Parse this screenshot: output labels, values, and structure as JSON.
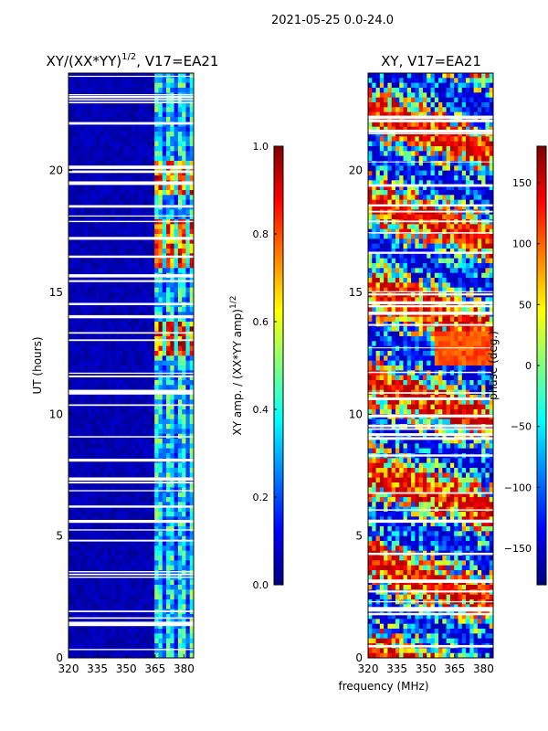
{
  "page_title": "2021-05-25 0.0-24.0",
  "colormap_stops": [
    "#00007f",
    "#0000ff",
    "#007fff",
    "#00ffff",
    "#7fff7f",
    "#ffff00",
    "#ff7f00",
    "#ff0000",
    "#7f0000"
  ],
  "chart_data": [
    {
      "type": "heatmap",
      "title_main": "XY/(XX*YY)",
      "title_exp": "1/2",
      "title_tail": ", V17=EA21",
      "x_range": [
        320,
        385
      ],
      "x_ticks": [
        "320",
        "335",
        "350",
        "365",
        "380"
      ],
      "x_tick_values": [
        320,
        335,
        350,
        365,
        380
      ],
      "y_range": [
        0,
        24
      ],
      "y_ticks": [
        "0",
        "5",
        "10",
        "15",
        "20"
      ],
      "y_tick_values": [
        0,
        5,
        10,
        15,
        20
      ],
      "ylabel": "UT (hours)",
      "description_values": "normalized amplitude mostly near 0; higher values (0.4-1.0) concentrated in channels 362-382 MHz, peaks near 12.5-13.5 h and 16-20 h",
      "colorbar": {
        "label_main": "XY amp. / (XX*YY amp)",
        "label_exp": "1/2",
        "range": [
          0.0,
          1.0
        ],
        "ticks": [
          "0.0",
          "0.2",
          "0.4",
          "0.6",
          "0.8",
          "1.0"
        ],
        "tick_values": [
          0.0,
          0.2,
          0.4,
          0.6,
          0.8,
          1.0
        ]
      }
    },
    {
      "type": "heatmap",
      "title": "XY, V17=EA21",
      "x_range": [
        320,
        385
      ],
      "x_ticks": [
        "320",
        "335",
        "350",
        "365",
        "380"
      ],
      "x_tick_values": [
        320,
        335,
        350,
        365,
        380
      ],
      "y_range": [
        0,
        24
      ],
      "y_ticks": [
        "0",
        "5",
        "10",
        "15",
        "20"
      ],
      "y_tick_values": [
        0,
        5,
        10,
        15,
        20
      ],
      "description_values": "phase spans -180 to 180 degrees with noisy banded structure across all hours",
      "colorbar": {
        "label": "phase (deg.)",
        "range": [
          -180,
          180
        ],
        "ticks": [
          "−150",
          "−100",
          "−50",
          "0",
          "50",
          "100",
          "150"
        ],
        "tick_values": [
          -150,
          -100,
          -50,
          0,
          50,
          100,
          150
        ]
      }
    }
  ],
  "shared_xlabel": "frequency (MHz)"
}
